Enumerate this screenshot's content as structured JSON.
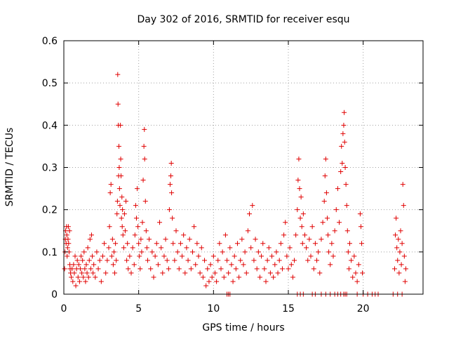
{
  "chart_data": {
    "type": "scatter",
    "title": "Day 302 of 2016, SRMTID for receiver esqu",
    "xlabel": "GPS time / hours",
    "ylabel": "SRMTID / TECUs",
    "xlim": [
      0,
      24
    ],
    "ylim": [
      0,
      0.6
    ],
    "x_ticks": [
      0,
      5,
      10,
      15,
      20
    ],
    "y_ticks": [
      0,
      0.1,
      0.2,
      0.3,
      0.4,
      0.5,
      0.6
    ],
    "x_tick_labels": [
      "0",
      "5",
      "10",
      "15",
      "20"
    ],
    "y_tick_labels": [
      "0",
      "0.1",
      "0.2",
      "0.3",
      "0.4",
      "0.5",
      "0.6"
    ],
    "grid": true,
    "marker": "+",
    "color": "#e00000",
    "series": [
      {
        "values": [
          [
            0.05,
            0.06
          ],
          [
            0.08,
            0.1
          ],
          [
            0.1,
            0.13
          ],
          [
            0.12,
            0.15
          ],
          [
            0.15,
            0.12
          ],
          [
            0.18,
            0.16
          ],
          [
            0.2,
            0.14
          ],
          [
            0.22,
            0.09
          ],
          [
            0.25,
            0.11
          ],
          [
            0.28,
            0.13
          ],
          [
            0.3,
            0.16
          ],
          [
            0.32,
            0.12
          ],
          [
            0.35,
            0.1
          ],
          [
            0.38,
            0.15
          ],
          [
            0.4,
            0.07
          ],
          [
            0.42,
            0.06
          ],
          [
            0.45,
            0.05
          ],
          [
            0.5,
            0.04
          ],
          [
            0.55,
            0.06
          ],
          [
            0.6,
            0.03
          ],
          [
            0.65,
            0.07
          ],
          [
            0.7,
            0.05
          ],
          [
            0.75,
            0.09
          ],
          [
            0.8,
            0.02
          ],
          [
            0.85,
            0.06
          ],
          [
            0.9,
            0.08
          ],
          [
            0.95,
            0.04
          ],
          [
            1.0,
            0.07
          ],
          [
            1.05,
            0.03
          ],
          [
            1.1,
            0.06
          ],
          [
            1.15,
            0.09
          ],
          [
            1.2,
            0.05
          ],
          [
            1.25,
            0.08
          ],
          [
            1.3,
            0.04
          ],
          [
            1.35,
            0.1
          ],
          [
            1.4,
            0.06
          ],
          [
            1.45,
            0.03
          ],
          [
            1.5,
            0.07
          ],
          [
            1.55,
            0.05
          ],
          [
            1.6,
            0.11
          ],
          [
            1.65,
            0.04
          ],
          [
            1.7,
            0.08
          ],
          [
            1.75,
            0.13
          ],
          [
            1.8,
            0.06
          ],
          [
            1.85,
            0.14
          ],
          [
            1.9,
            0.09
          ],
          [
            1.95,
            0.05
          ],
          [
            2.0,
            0.07
          ],
          [
            2.1,
            0.04
          ],
          [
            2.2,
            0.1
          ],
          [
            2.3,
            0.06
          ],
          [
            2.4,
            0.08
          ],
          [
            2.5,
            0.03
          ],
          [
            2.6,
            0.09
          ],
          [
            2.7,
            0.12
          ],
          [
            2.8,
            0.05
          ],
          [
            2.9,
            0.08
          ],
          [
            3.0,
            0.11
          ],
          [
            3.05,
            0.16
          ],
          [
            3.1,
            0.24
          ],
          [
            3.15,
            0.26
          ],
          [
            3.2,
            0.09
          ],
          [
            3.25,
            0.13
          ],
          [
            3.3,
            0.07
          ],
          [
            3.35,
            0.1
          ],
          [
            3.4,
            0.05
          ],
          [
            3.45,
            0.12
          ],
          [
            3.5,
            0.08
          ],
          [
            3.55,
            0.19
          ],
          [
            3.58,
            0.22
          ],
          [
            3.6,
            0.52
          ],
          [
            3.62,
            0.45
          ],
          [
            3.64,
            0.4
          ],
          [
            3.66,
            0.28
          ],
          [
            3.68,
            0.35
          ],
          [
            3.7,
            0.3
          ],
          [
            3.72,
            0.25
          ],
          [
            3.75,
            0.21
          ],
          [
            3.78,
            0.4
          ],
          [
            3.8,
            0.32
          ],
          [
            3.82,
            0.28
          ],
          [
            3.85,
            0.18
          ],
          [
            3.88,
            0.23
          ],
          [
            3.9,
            0.16
          ],
          [
            3.92,
            0.2
          ],
          [
            3.95,
            0.14
          ],
          [
            4.0,
            0.11
          ],
          [
            4.05,
            0.19
          ],
          [
            4.1,
            0.15
          ],
          [
            4.15,
            0.22
          ],
          [
            4.2,
            0.08
          ],
          [
            4.25,
            0.12
          ],
          [
            4.3,
            0.06
          ],
          [
            4.4,
            0.09
          ],
          [
            4.5,
            0.05
          ],
          [
            4.6,
            0.11
          ],
          [
            4.7,
            0.07
          ],
          [
            4.75,
            0.14
          ],
          [
            4.8,
            0.21
          ],
          [
            4.85,
            0.18
          ],
          [
            4.9,
            0.25
          ],
          [
            4.95,
            0.16
          ],
          [
            5.0,
            0.12
          ],
          [
            5.05,
            0.09
          ],
          [
            5.1,
            0.06
          ],
          [
            5.15,
            0.13
          ],
          [
            5.2,
            0.1
          ],
          [
            5.25,
            0.17
          ],
          [
            5.3,
            0.27
          ],
          [
            5.35,
            0.35
          ],
          [
            5.38,
            0.39
          ],
          [
            5.4,
            0.32
          ],
          [
            5.45,
            0.22
          ],
          [
            5.5,
            0.15
          ],
          [
            5.55,
            0.11
          ],
          [
            5.6,
            0.08
          ],
          [
            5.7,
            0.13
          ],
          [
            5.8,
            0.06
          ],
          [
            5.9,
            0.1
          ],
          [
            6.0,
            0.04
          ],
          [
            6.1,
            0.09
          ],
          [
            6.2,
            0.12
          ],
          [
            6.3,
            0.07
          ],
          [
            6.4,
            0.17
          ],
          [
            6.5,
            0.11
          ],
          [
            6.6,
            0.05
          ],
          [
            6.7,
            0.09
          ],
          [
            6.8,
            0.13
          ],
          [
            6.9,
            0.08
          ],
          [
            7.0,
            0.06
          ],
          [
            7.05,
            0.2
          ],
          [
            7.1,
            0.26
          ],
          [
            7.15,
            0.28
          ],
          [
            7.18,
            0.31
          ],
          [
            7.2,
            0.24
          ],
          [
            7.25,
            0.18
          ],
          [
            7.3,
            0.12
          ],
          [
            7.4,
            0.08
          ],
          [
            7.5,
            0.15
          ],
          [
            7.6,
            0.1
          ],
          [
            7.7,
            0.06
          ],
          [
            7.8,
            0.12
          ],
          [
            7.9,
            0.09
          ],
          [
            8.0,
            0.14
          ],
          [
            8.1,
            0.05
          ],
          [
            8.2,
            0.11
          ],
          [
            8.3,
            0.08
          ],
          [
            8.4,
            0.13
          ],
          [
            8.5,
            0.06
          ],
          [
            8.6,
            0.1
          ],
          [
            8.7,
            0.16
          ],
          [
            8.8,
            0.07
          ],
          [
            8.9,
            0.12
          ],
          [
            9.0,
            0.09
          ],
          [
            9.1,
            0.05
          ],
          [
            9.2,
            0.11
          ],
          [
            9.3,
            0.04
          ],
          [
            9.4,
            0.08
          ],
          [
            9.5,
            0.02
          ],
          [
            9.6,
            0.06
          ],
          [
            9.7,
            0.03
          ],
          [
            9.8,
            0.07
          ],
          [
            9.9,
            0.04
          ],
          [
            10.0,
            0.09
          ],
          [
            10.1,
            0.05
          ],
          [
            10.2,
            0.03
          ],
          [
            10.3,
            0.08
          ],
          [
            10.4,
            0.12
          ],
          [
            10.5,
            0.06
          ],
          [
            10.6,
            0.1
          ],
          [
            10.7,
            0.04
          ],
          [
            10.8,
            0.14
          ],
          [
            10.9,
            0.08
          ],
          [
            11.0,
            0.05
          ],
          [
            11.1,
            0.11
          ],
          [
            11.2,
            0.07
          ],
          [
            11.3,
            0.03
          ],
          [
            11.4,
            0.09
          ],
          [
            11.5,
            0.06
          ],
          [
            11.6,
            0.12
          ],
          [
            11.7,
            0.04
          ],
          [
            11.8,
            0.08
          ],
          [
            11.9,
            0.13
          ],
          [
            12.0,
            0.07
          ],
          [
            12.1,
            0.1
          ],
          [
            12.2,
            0.05
          ],
          [
            12.3,
            0.15
          ],
          [
            12.4,
            0.19
          ],
          [
            12.5,
            0.11
          ],
          [
            12.6,
            0.21
          ],
          [
            12.7,
            0.08
          ],
          [
            12.8,
            0.13
          ],
          [
            12.9,
            0.06
          ],
          [
            13.0,
            0.1
          ],
          [
            13.1,
            0.04
          ],
          [
            13.2,
            0.09
          ],
          [
            13.3,
            0.12
          ],
          [
            13.4,
            0.06
          ],
          [
            13.5,
            0.03
          ],
          [
            13.6,
            0.08
          ],
          [
            13.7,
            0.11
          ],
          [
            13.8,
            0.05
          ],
          [
            13.9,
            0.09
          ],
          [
            14.0,
            0.04
          ],
          [
            14.1,
            0.07
          ],
          [
            14.2,
            0.1
          ],
          [
            14.3,
            0.05
          ],
          [
            14.4,
            0.08
          ],
          [
            14.5,
            0.12
          ],
          [
            14.6,
            0.06
          ],
          [
            14.7,
            0.14
          ],
          [
            14.8,
            0.17
          ],
          [
            14.9,
            0.09
          ],
          [
            15.0,
            0.06
          ],
          [
            15.1,
            0.11
          ],
          [
            15.2,
            0.07
          ],
          [
            15.3,
            0.04
          ],
          [
            15.4,
            0.08
          ],
          [
            15.5,
            0.14
          ],
          [
            15.6,
            0.2
          ],
          [
            15.65,
            0.27
          ],
          [
            15.7,
            0.32
          ],
          [
            15.75,
            0.25
          ],
          [
            15.8,
            0.18
          ],
          [
            15.85,
            0.23
          ],
          [
            15.9,
            0.16
          ],
          [
            15.95,
            0.12
          ],
          [
            16.0,
            0.19
          ],
          [
            16.1,
            0.14
          ],
          [
            16.2,
            0.11
          ],
          [
            16.3,
            0.08
          ],
          [
            16.4,
            0.13
          ],
          [
            16.5,
            0.09
          ],
          [
            16.6,
            0.16
          ],
          [
            16.7,
            0.06
          ],
          [
            16.8,
            0.12
          ],
          [
            16.9,
            0.08
          ],
          [
            17.0,
            0.1
          ],
          [
            17.1,
            0.05
          ],
          [
            17.2,
            0.13
          ],
          [
            17.3,
            0.17
          ],
          [
            17.4,
            0.22
          ],
          [
            17.45,
            0.28
          ],
          [
            17.5,
            0.32
          ],
          [
            17.55,
            0.24
          ],
          [
            17.6,
            0.18
          ],
          [
            17.65,
            0.14
          ],
          [
            17.7,
            0.1
          ],
          [
            17.8,
            0.07
          ],
          [
            17.9,
            0.12
          ],
          [
            18.0,
            0.09
          ],
          [
            18.1,
            0.15
          ],
          [
            18.2,
            0.2
          ],
          [
            18.3,
            0.25
          ],
          [
            18.4,
            0.17
          ],
          [
            18.5,
            0.29
          ],
          [
            18.55,
            0.35
          ],
          [
            18.6,
            0.31
          ],
          [
            18.65,
            0.38
          ],
          [
            18.7,
            0.4
          ],
          [
            18.73,
            0.43
          ],
          [
            18.76,
            0.36
          ],
          [
            18.8,
            0.3
          ],
          [
            18.85,
            0.26
          ],
          [
            18.9,
            0.21
          ],
          [
            18.95,
            0.15
          ],
          [
            19.0,
            0.1
          ],
          [
            19.05,
            0.06
          ],
          [
            19.1,
            0.12
          ],
          [
            19.2,
            0.08
          ],
          [
            19.3,
            0.04
          ],
          [
            19.4,
            0.09
          ],
          [
            19.5,
            0.05
          ],
          [
            19.6,
            0.03
          ],
          [
            19.7,
            0.07
          ],
          [
            19.8,
            0.19
          ],
          [
            19.85,
            0.16
          ],
          [
            19.9,
            0.12
          ],
          [
            19.95,
            0.05
          ],
          [
            22.1,
            0.06
          ],
          [
            22.15,
            0.14
          ],
          [
            22.2,
            0.18
          ],
          [
            22.25,
            0.11
          ],
          [
            22.3,
            0.08
          ],
          [
            22.35,
            0.13
          ],
          [
            22.4,
            0.05
          ],
          [
            22.45,
            0.1
          ],
          [
            22.5,
            0.15
          ],
          [
            22.55,
            0.07
          ],
          [
            22.6,
            0.12
          ],
          [
            22.65,
            0.26
          ],
          [
            22.7,
            0.21
          ],
          [
            22.75,
            0.09
          ],
          [
            22.8,
            0.03
          ],
          [
            22.85,
            0.06
          ]
        ]
      }
    ],
    "zero_points_x": [
      10.9,
      11.0,
      11.1,
      15.6,
      15.8,
      16.0,
      16.6,
      16.8,
      17.2,
      17.5,
      17.8,
      18.1,
      18.3,
      18.5,
      18.7,
      18.8,
      18.9,
      19.6,
      20.0,
      20.3,
      20.6,
      20.8,
      21.0,
      22.0,
      22.3,
      22.6
    ]
  }
}
